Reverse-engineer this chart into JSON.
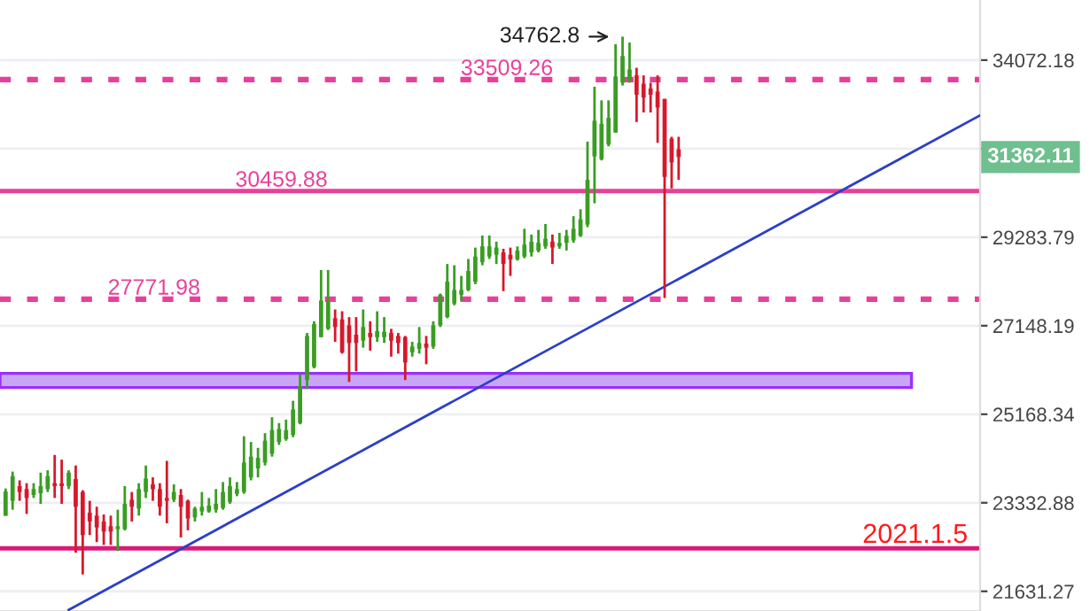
{
  "chart_data": {
    "type": "candlestick",
    "categories": [
      null,
      null,
      null,
      null,
      null,
      null,
      null,
      null,
      null,
      null,
      null,
      null,
      null,
      null,
      null,
      null,
      null,
      null,
      null,
      null,
      null,
      null,
      null,
      null,
      null,
      null,
      null,
      null,
      null,
      null,
      null,
      null,
      null,
      null,
      null,
      null,
      null,
      null,
      null,
      null,
      null,
      null,
      null,
      null,
      null,
      null,
      null,
      null,
      null,
      null,
      null,
      null,
      null,
      null,
      null,
      null,
      null,
      null,
      null,
      null,
      null,
      null,
      null,
      null,
      null,
      null,
      null,
      null,
      null,
      null,
      null,
      null,
      null,
      null,
      null,
      null,
      null,
      null,
      null,
      null,
      null,
      null,
      null,
      null,
      null,
      null,
      null,
      null,
      null,
      null,
      null,
      null,
      null,
      null,
      null,
      null,
      null,
      null,
      null,
      null,
      null,
      null,
      null,
      null,
      null,
      null,
      null,
      null,
      null,
      null,
      null,
      null,
      null,
      null,
      null,
      null,
      null,
      null,
      null,
      null,
      null,
      null,
      null,
      null,
      null,
      null,
      null,
      null,
      null,
      null,
      null,
      null,
      null,
      null,
      null,
      null,
      null,
      null,
      null,
      null
    ],
    "ohlc": [
      [
        23075,
        23620,
        23075,
        23560
      ],
      [
        23372,
        23964,
        23195,
        23871
      ],
      [
        23667,
        23785,
        23372,
        23549
      ],
      [
        23608,
        23727,
        23111,
        23429
      ],
      [
        23489,
        23727,
        23429,
        23608
      ],
      [
        23525,
        23942,
        23312,
        23667
      ],
      [
        23608,
        23990,
        23549,
        23871
      ],
      [
        23727,
        24308,
        23429,
        23667
      ],
      [
        23727,
        24210,
        23312,
        23667
      ],
      [
        23667,
        23990,
        23608,
        23942
      ],
      [
        23810,
        24089,
        22356,
        23254
      ],
      [
        23549,
        23585,
        21945,
        22697
      ],
      [
        23136,
        23372,
        22697,
        22962
      ],
      [
        23078,
        23254,
        22561,
        22847
      ],
      [
        22962,
        23101,
        22507,
        22765
      ],
      [
        22870,
        23078,
        22507,
        22765
      ],
      [
        22812,
        23195,
        22390,
        22870
      ],
      [
        22812,
        23667,
        22789,
        23312
      ],
      [
        23395,
        23549,
        22962,
        23254
      ],
      [
        23219,
        23727,
        23078,
        23608
      ],
      [
        23549,
        24089,
        23429,
        23822
      ],
      [
        23703,
        23846,
        23372,
        23608
      ],
      [
        23608,
        23727,
        23078,
        23254
      ],
      [
        23429,
        24185,
        22927,
        23372
      ],
      [
        23395,
        23703,
        23348,
        23549
      ],
      [
        23489,
        23608,
        22652,
        23254
      ],
      [
        23372,
        23395,
        22789,
        23021
      ],
      [
        23044,
        23254,
        22962,
        23219
      ],
      [
        23160,
        23549,
        23078,
        23254
      ],
      [
        23160,
        23429,
        23136,
        23278
      ],
      [
        23195,
        23608,
        23136,
        23312
      ],
      [
        23230,
        23750,
        23195,
        23549
      ],
      [
        23348,
        23846,
        23312,
        23667
      ],
      [
        23513,
        23750,
        23465,
        23608
      ],
      [
        23549,
        24699,
        23513,
        24149
      ],
      [
        23846,
        24578,
        23785,
        24272
      ],
      [
        24028,
        24455,
        23846,
        24246
      ],
      [
        24149,
        24764,
        24089,
        24604
      ],
      [
        24332,
        25104,
        24272,
        24828
      ],
      [
        24578,
        24979,
        24517,
        24853
      ],
      [
        24640,
        25053,
        24604,
        24828
      ],
      [
        24728,
        25460,
        24679,
        25270
      ],
      [
        24979,
        26043,
        24953,
        25784
      ],
      [
        25915,
        26980,
        25719,
        26912
      ],
      [
        26207,
        27253,
        26175,
        27185
      ],
      [
        26884,
        28473,
        26884,
        27738
      ],
      [
        27076,
        28473,
        27048,
        27710
      ],
      [
        27322,
        27528,
        26777,
        27117
      ],
      [
        27294,
        27486,
        26508,
        26536
      ],
      [
        27157,
        27349,
        25875,
        26751
      ],
      [
        26940,
        27349,
        26110,
        26751
      ],
      [
        26804,
        27528,
        26644,
        27117
      ],
      [
        26980,
        27253,
        26576,
        26884
      ],
      [
        26884,
        27486,
        26777,
        27021
      ],
      [
        26884,
        27349,
        26751,
        27007
      ],
      [
        26980,
        27076,
        26440,
        26804
      ],
      [
        26912,
        26980,
        26508,
        26751
      ],
      [
        26884,
        26912,
        25915,
        26309
      ],
      [
        26536,
        26777,
        26440,
        26670
      ],
      [
        26617,
        27117,
        26508,
        26751
      ],
      [
        26737,
        26912,
        26268,
        26644
      ],
      [
        26670,
        27253,
        26617,
        27157
      ],
      [
        27157,
        27905,
        27117,
        27877
      ],
      [
        27349,
        28620,
        27322,
        28189
      ],
      [
        27668,
        28589,
        27626,
        27991
      ],
      [
        27877,
        28330,
        27738,
        27991
      ],
      [
        27991,
        28743,
        27962,
        28448
      ],
      [
        28189,
        29025,
        28130,
        28803
      ],
      [
        28663,
        29326,
        28589,
        29055
      ],
      [
        28803,
        29326,
        28743,
        29055
      ],
      [
        28847,
        29172,
        28620,
        29025
      ],
      [
        28906,
        28995,
        27962,
        28620
      ],
      [
        28847,
        29025,
        28330,
        28732
      ],
      [
        28732,
        29055,
        28703,
        28951
      ],
      [
        28803,
        29496,
        28760,
        29099
      ],
      [
        28906,
        29349,
        28803,
        29172
      ],
      [
        28951,
        29467,
        28906,
        29143
      ],
      [
        29055,
        29615,
        28995,
        29246
      ],
      [
        29172,
        29349,
        28620,
        29025
      ],
      [
        29055,
        29393,
        28995,
        29143
      ],
      [
        29143,
        29467,
        28951,
        29320
      ],
      [
        29202,
        29815,
        29143,
        29496
      ],
      [
        29320,
        29992,
        29290,
        29735
      ],
      [
        29601,
        31780,
        29535,
        30755
      ],
      [
        31380,
        33305,
        30144,
        32348
      ],
      [
        31304,
        32920,
        31270,
        32265
      ],
      [
        31700,
        32920,
        31650,
        32430
      ],
      [
        32025,
        34540,
        32025,
        33600
      ],
      [
        33419,
        34762.8,
        33340,
        34190
      ],
      [
        33510,
        34590,
        33419,
        33800
      ],
      [
        33630,
        33850,
        32315,
        33080
      ],
      [
        33390,
        33630,
        32580,
        33000
      ],
      [
        33255,
        33419,
        32580,
        33080
      ],
      [
        33170,
        33630,
        31745,
        32720
      ],
      [
        32960,
        32960,
        27800,
        30834
      ],
      [
        31860,
        31910,
        30530,
        31220
      ],
      [
        31570,
        31910,
        30755,
        31362.11
      ],
      null,
      null,
      null,
      null,
      null,
      null,
      null,
      null,
      null,
      null,
      null,
      null,
      null,
      null,
      null,
      null,
      null,
      null,
      null,
      null,
      null,
      null,
      null,
      null,
      null,
      null,
      null,
      null,
      null,
      null,
      null,
      null,
      null,
      null,
      null,
      null,
      null,
      null,
      null,
      null,
      null,
      null,
      null
    ],
    "series": [
      {
        "type": "line",
        "color": "#2b3fc6",
        "values": [
          null,
          null,
          null,
          null,
          null,
          null,
          null,
          null,
          null,
          21290,
          null,
          null,
          null,
          null,
          null,
          null,
          null,
          null,
          null,
          null,
          null,
          null,
          null,
          null,
          null,
          null,
          null,
          null,
          null,
          null,
          null,
          null,
          null,
          null,
          null,
          null,
          null,
          null,
          null,
          null,
          null,
          null,
          null,
          null,
          null,
          null,
          null,
          null,
          null,
          null,
          null,
          null,
          null,
          null,
          null,
          null,
          null,
          null,
          null,
          null,
          null,
          null,
          null,
          null,
          null,
          null,
          null,
          null,
          null,
          null,
          null,
          null,
          null,
          null,
          null,
          null,
          null,
          null,
          null,
          null,
          null,
          null,
          null,
          null,
          null,
          null,
          null,
          null,
          null,
          null,
          null,
          null,
          null,
          null,
          null,
          null,
          null,
          null,
          null,
          null,
          null,
          null,
          null,
          null,
          null,
          null,
          null,
          null,
          null,
          null,
          null,
          null,
          null,
          null,
          null,
          null,
          null,
          null,
          null,
          null,
          null,
          null,
          null,
          null,
          null,
          null,
          null,
          null,
          null,
          null,
          null,
          null,
          null,
          null,
          null,
          null,
          null,
          null,
          null,
          32500
        ]
      }
    ],
    "log": "y",
    "ylim": [
      21270,
      35870
    ],
    "yticks": [
      21631.27,
      23332.88,
      25168.34,
      27148.19,
      29283.79,
      {
        "value": 31587.38,
        "label": null
      },
      34072.18
    ],
    "ref_lines": [
      {
        "axis": "y",
        "value": 33509.26,
        "label": "33509.26",
        "color": "#e8409a",
        "line_style": "dotted"
      },
      {
        "axis": "y",
        "value": 30459.88,
        "label": "30459.88",
        "color": "#e8409a",
        "line_style": "solid"
      },
      {
        "axis": "y",
        "value": 27771.98,
        "label": "27771.98",
        "color": "#e8409a",
        "line_style": "dotted"
      },
      {
        "axis": "y",
        "value": 22440,
        "label": "2021.1.5",
        "color": "#d81b7a",
        "line_style": "solid"
      }
    ],
    "bands": [
      {
        "axis": "y",
        "from": 25749,
        "to": 26065,
        "color": "#c9a6f5"
      }
    ],
    "annotations": [
      "34762.8",
      "31362.11"
    ],
    "grid": "y",
    "tick_labels": "y"
  }
}
